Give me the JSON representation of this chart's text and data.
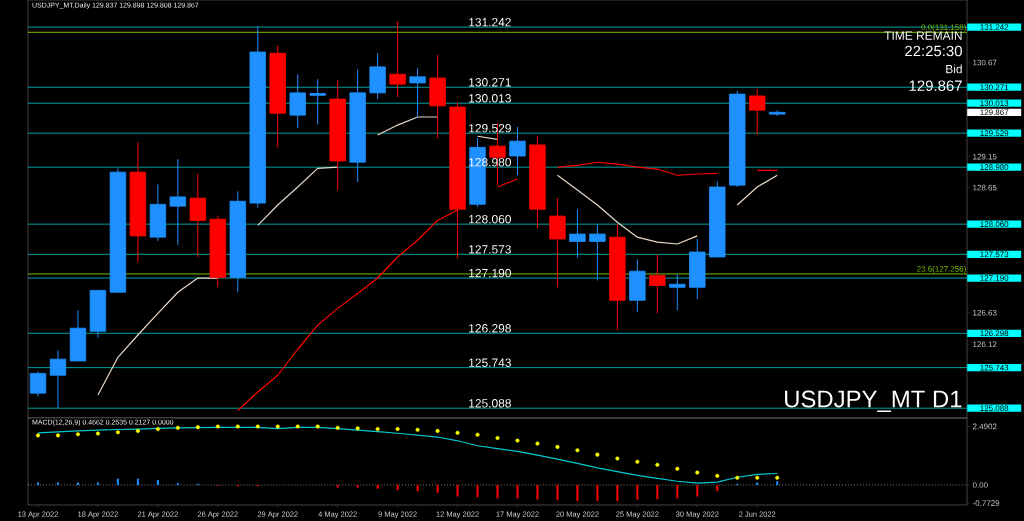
{
  "chart_data": [
    {
      "type": "candlestick",
      "title": "USDJPY_MT,Daily 129.837 129.898 129.808 129.867",
      "categories": [
        null,
        null,
        null,
        null,
        null,
        null,
        null,
        null,
        null,
        null,
        null,
        null,
        null,
        null,
        null,
        null,
        null,
        null,
        null,
        null,
        null,
        null,
        null,
        null,
        null,
        null,
        null,
        null,
        null,
        null,
        null,
        null,
        null,
        null,
        null,
        null,
        null,
        null,
        null,
        null,
        null,
        null,
        null,
        null,
        null,
        null,
        null
      ],
      "ohlc": [
        [
          125.33,
          125.68,
          125.28,
          125.65
        ],
        [
          125.62,
          126.02,
          125.09,
          125.88
        ],
        [
          125.85,
          126.67,
          125.85,
          126.38
        ],
        [
          126.33,
          126.99,
          126.23,
          126.99
        ],
        [
          126.96,
          128.96,
          126.96,
          128.9
        ],
        [
          128.9,
          129.38,
          127.45,
          127.87
        ],
        [
          127.85,
          128.7,
          127.79,
          128.38
        ],
        [
          128.35,
          129.11,
          127.72,
          128.5
        ],
        [
          128.48,
          128.87,
          127.53,
          128.12
        ],
        [
          128.14,
          128.2,
          127.04,
          127.2
        ],
        [
          127.2,
          128.59,
          126.96,
          128.43
        ],
        [
          128.4,
          131.26,
          128.33,
          130.84
        ],
        [
          130.82,
          130.95,
          129.3,
          129.85
        ],
        [
          129.82,
          130.48,
          129.61,
          130.18
        ],
        [
          130.14,
          130.4,
          129.67,
          130.17
        ],
        [
          130.08,
          130.39,
          128.61,
          129.08
        ],
        [
          129.06,
          130.56,
          128.74,
          130.18
        ],
        [
          130.18,
          130.82,
          130.08,
          130.6
        ],
        [
          130.48,
          131.34,
          130.11,
          130.32
        ],
        [
          130.34,
          130.58,
          129.79,
          130.44
        ],
        [
          130.42,
          130.79,
          129.45,
          129.97
        ],
        [
          129.95,
          130.03,
          127.51,
          128.3
        ],
        [
          128.38,
          129.45,
          128.34,
          129.3
        ],
        [
          129.32,
          129.69,
          128.69,
          129.14
        ],
        [
          129.16,
          129.63,
          128.85,
          129.4
        ],
        [
          129.34,
          129.48,
          127.99,
          128.3
        ],
        [
          128.19,
          128.48,
          127.04,
          127.82
        ],
        [
          127.78,
          128.3,
          127.52,
          127.9
        ],
        [
          127.78,
          128.06,
          127.15,
          127.9
        ],
        [
          127.85,
          128.06,
          126.35,
          126.83
        ],
        [
          126.83,
          127.49,
          126.64,
          127.3
        ],
        [
          127.23,
          127.57,
          126.62,
          127.07
        ],
        [
          127.04,
          127.25,
          126.67,
          127.09
        ],
        [
          127.04,
          127.82,
          126.85,
          127.61
        ],
        [
          127.53,
          128.75,
          127.52,
          128.66
        ],
        [
          128.69,
          130.21,
          128.66,
          130.16
        ],
        [
          130.13,
          130.24,
          129.51,
          129.9
        ],
        [
          129.837,
          129.898,
          129.808,
          129.867
        ],
        null,
        null,
        null,
        null,
        null,
        null,
        null,
        null,
        null
      ],
      "series": [
        {
          "type": "line",
          "color": "#ff0000",
          "values": [
            null,
            null,
            null,
            null,
            null,
            null,
            null,
            null,
            null,
            null,
            125.05,
            125.35,
            125.62,
            126.04,
            126.43,
            126.7,
            126.94,
            127.19,
            127.53,
            127.8,
            128.12,
            128.29,
            null,
            128.66,
            128.79,
            null,
            128.98,
            129.01,
            129.06,
            129.03,
            128.98,
            128.95,
            128.85,
            128.87,
            128.88,
            null,
            128.93,
            128.93,
            null,
            null,
            null,
            null,
            null,
            null,
            null,
            null,
            null
          ]
        },
        {
          "type": "line",
          "color": "#e8d8c8",
          "values": [
            null,
            null,
            null,
            125.3,
            125.91,
            126.27,
            126.62,
            126.96,
            127.19,
            127.19,
            null,
            128.04,
            128.37,
            128.66,
            128.96,
            128.98,
            null,
            129.5,
            129.66,
            129.79,
            129.79,
            null,
            129.48,
            129.43,
            null,
            null,
            128.85,
            128.61,
            128.37,
            128.09,
            127.85,
            127.77,
            127.74,
            127.87,
            null,
            128.37,
            128.66,
            128.85,
            null,
            null,
            null,
            null,
            null,
            null,
            null,
            null,
            null
          ]
        }
      ],
      "ylim": [
        124.93,
        131.68
      ],
      "yticks": [
        130.67,
        129.15,
        128.65,
        126.63,
        126.12
      ],
      "tick_labels": "y",
      "ref_lines": [
        {
          "axis": "y",
          "value": 131.242,
          "label": "131.242",
          "color": "#00a0a0"
        },
        {
          "axis": "y",
          "value": 130.271,
          "label": "130.271",
          "color": "#00a0a0"
        },
        {
          "axis": "y",
          "value": 130.013,
          "label": "130.013",
          "color": "#00a0a0"
        },
        {
          "axis": "y",
          "value": 129.529,
          "label": "129.529",
          "color": "#00a0a0"
        },
        {
          "axis": "y",
          "value": 128.98,
          "label": "128.980",
          "color": "#00a0a0"
        },
        {
          "axis": "y",
          "value": 128.06,
          "label": "128.060",
          "color": "#00a0a0"
        },
        {
          "axis": "y",
          "value": 127.573,
          "label": "127.573",
          "color": "#00a0a0"
        },
        {
          "axis": "y",
          "value": 127.19,
          "label": "127.190",
          "color": "#00a0a0"
        },
        {
          "axis": "y",
          "value": 126.298,
          "label": "126.298",
          "color": "#00a0a0"
        },
        {
          "axis": "y",
          "value": 125.743,
          "label": "125.743",
          "color": "#00a0a0"
        },
        {
          "axis": "y",
          "value": 125.088,
          "label": "125.088",
          "color": "#00a0a0"
        },
        {
          "axis": "y",
          "value": 131.158,
          "label": "0.0(131.158)",
          "color": "#7cc000"
        },
        {
          "axis": "y",
          "value": 127.256,
          "label": "23.6(127.256)",
          "color": "#7cc000"
        }
      ],
      "annotations": [
        "TIME REMAIN",
        "22:25:30",
        "Bid",
        "129.867",
        "129.867",
        "USDJPY_MT D1"
      ]
    },
    {
      "type": "line",
      "title": "MACD(12,26,9) 0.4662 0.2535 0.2127 0.0000",
      "categories": [
        "13 Apr 2022",
        null,
        null,
        "18 Apr 2022",
        null,
        null,
        "21 Apr 2022",
        null,
        null,
        "26 Apr 2022",
        null,
        null,
        "29 Apr 2022",
        null,
        null,
        "4 May 2022",
        null,
        null,
        "9 May 2022",
        null,
        null,
        "12 May 2022",
        null,
        null,
        "17 May 2022",
        null,
        null,
        "20 May 2022",
        null,
        null,
        "25 May 2022",
        null,
        null,
        "30 May 2022",
        null,
        null,
        "2 Jun 2022",
        null,
        null,
        null,
        null,
        null,
        null,
        null,
        null,
        null,
        null
      ],
      "series": [
        {
          "type": "bar",
          "colors": [
            "#1e90ff",
            "#1e90ff",
            "#1e90ff",
            "#1e90ff",
            "#1e90ff",
            "#1e90ff",
            "#1e90ff",
            "#1e90ff",
            "#1e90ff",
            "#ff0000",
            "#ff0000",
            "#ff0000",
            "#1e90ff",
            "#1e90ff",
            "#1e90ff",
            "#ff0000",
            "#ff0000",
            "#ff0000",
            "#ff0000",
            "#ff0000",
            "#ff0000",
            "#ff0000",
            "#ff0000",
            "#ff0000",
            "#ff0000",
            "#ff0000",
            "#ff0000",
            "#ff0000",
            "#ff0000",
            "#ff0000",
            "#ff0000",
            "#ff0000",
            "#ff0000",
            "#ff0000",
            "#ff0000",
            "#1e90ff",
            "#1e90ff",
            "#1e90ff",
            null,
            null,
            null,
            null,
            null,
            null,
            null,
            null,
            null
          ],
          "values": [
            0.11,
            0.11,
            0.11,
            0.11,
            0.27,
            0.27,
            0.22,
            0.08,
            0.05,
            -0.03,
            -0.05,
            -0.05,
            null,
            null,
            null,
            -0.11,
            -0.11,
            -0.16,
            -0.22,
            -0.27,
            -0.33,
            -0.49,
            -0.52,
            -0.57,
            -0.57,
            -0.62,
            -0.65,
            -0.68,
            -0.68,
            -0.68,
            -0.62,
            -0.6,
            -0.57,
            -0.49,
            -0.27,
            0.05,
            0.11,
            0.16,
            null,
            null,
            null,
            null,
            null,
            null,
            null,
            null,
            null
          ]
        },
        {
          "type": "line",
          "color": "#00c8d0",
          "values": [
            2.22,
            2.26,
            2.3,
            2.33,
            2.36,
            2.38,
            2.41,
            2.43,
            2.44,
            2.45,
            2.45,
            2.45,
            2.4,
            2.45,
            2.45,
            2.4,
            2.33,
            2.27,
            2.2,
            2.12,
            2.04,
            1.88,
            1.67,
            1.55,
            1.43,
            1.27,
            1.1,
            0.92,
            0.73,
            0.57,
            0.41,
            0.28,
            0.16,
            0.08,
            0.12,
            0.33,
            0.45,
            0.49,
            null,
            null,
            null,
            null,
            null,
            null,
            null,
            null,
            null
          ]
        },
        {
          "type": "scatter",
          "color": "#ffff00",
          "marker": "circle",
          "values": [
            2.11,
            2.11,
            2.16,
            2.19,
            2.24,
            2.3,
            2.38,
            2.43,
            2.46,
            2.49,
            2.49,
            2.49,
            2.49,
            2.49,
            2.49,
            2.43,
            2.41,
            2.38,
            2.38,
            2.35,
            2.3,
            2.22,
            2.14,
            2.0,
            1.89,
            1.76,
            1.62,
            1.48,
            1.29,
            1.13,
            0.99,
            0.86,
            0.69,
            0.53,
            0.39,
            0.31,
            0.31,
            0.31,
            null,
            null,
            null,
            null,
            null,
            null,
            null,
            null,
            null
          ]
        }
      ],
      "ylim": [
        -0.85,
        2.85
      ],
      "yticks": [
        2.4902,
        {
          "value": 0,
          "label": "0.00"
        },
        -0.7729
      ],
      "ref_lines": [
        {
          "axis": "y",
          "value": 0,
          "color": "#808080",
          "line_style": "dotted"
        }
      ]
    }
  ]
}
